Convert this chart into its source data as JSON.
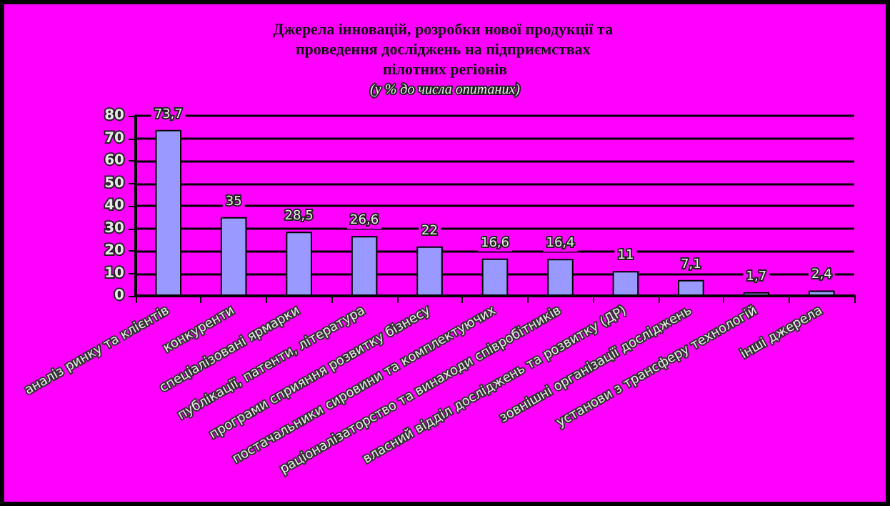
{
  "chart_data": {
    "type": "bar",
    "title": "Джерела інновацій, розробки нової продукції та проведення досліджень на підприємствах пілотних регіонів",
    "subtitle": "(у % до числа опитаних)",
    "categories": [
      "аналіз ринку та клієнтів",
      "конкуренти",
      "спеціалізовані ярмарки",
      "публікації, патенти, література",
      "програми сприяння розвитку бізнесу",
      "постачальники сировини та комплектуючих",
      "раціоналізаторство та винаходи співробітників",
      "власний відділ досліджень та розвитку (ДР)",
      "зовнішні організації досліджень",
      "установи з трансферу технологій",
      "інші джерела"
    ],
    "values": [
      73.7,
      35,
      28.5,
      26.6,
      22,
      16.6,
      16.4,
      11,
      7.1,
      1.7,
      2.4
    ],
    "value_labels": [
      "73,7",
      "35",
      "28,5",
      "26,6",
      "22",
      "16,6",
      "16,4",
      "11",
      "7,1",
      "1,7",
      "2,4"
    ],
    "color": "#9999ff",
    "ylim": [
      0,
      80
    ],
    "yticks": [
      0,
      10,
      20,
      30,
      40,
      50,
      60,
      70,
      80
    ],
    "grid": "y"
  }
}
